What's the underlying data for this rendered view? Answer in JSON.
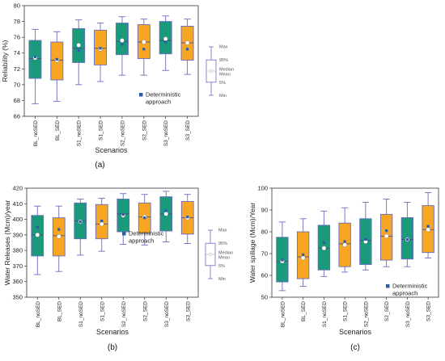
{
  "chart_data": [
    {
      "id": "a",
      "type": "box",
      "panel_label": "(a)",
      "xlabel": "Scenarios",
      "ylabel": "Reliability (%)",
      "ylim": [
        66,
        80
      ],
      "yticks": [
        66,
        68,
        70,
        72,
        74,
        76,
        78,
        80
      ],
      "categories": [
        "BL_noSED",
        "BL_SED",
        "S1_noSED",
        "S1_SED",
        "S2_noSED",
        "S2_SED",
        "S3_noSED",
        "S3_SED"
      ],
      "boxes": [
        {
          "min": 67.6,
          "q1": 70.8,
          "median": 73.3,
          "mean": 73.4,
          "q3": 75.6,
          "max": 77.0,
          "deterministic": 73.5,
          "color": "#1a9a7a"
        },
        {
          "min": 67.9,
          "q1": 70.6,
          "median": 73.1,
          "mean": 73.1,
          "q3": 75.4,
          "max": 76.7,
          "deterministic": 73.2,
          "color": "#f6a623"
        },
        {
          "min": 70.0,
          "q1": 72.8,
          "median": 74.6,
          "mean": 75.0,
          "q3": 77.1,
          "max": 78.2,
          "deterministic": 74.3,
          "color": "#1a9a7a"
        },
        {
          "min": 70.4,
          "q1": 72.5,
          "median": 74.6,
          "mean": 74.5,
          "q3": 76.9,
          "max": 77.8,
          "deterministic": 74.6,
          "color": "#f6a623"
        },
        {
          "min": 71.2,
          "q1": 73.8,
          "median": 75.5,
          "mean": 75.6,
          "q3": 77.8,
          "max": 78.6,
          "deterministic": 75.1,
          "color": "#1a9a7a"
        },
        {
          "min": 71.2,
          "q1": 73.3,
          "median": 75.4,
          "mean": 75.4,
          "q3": 77.6,
          "max": 78.3,
          "deterministic": 74.5,
          "color": "#f6a623"
        },
        {
          "min": 71.8,
          "q1": 73.9,
          "median": 75.6,
          "mean": 75.8,
          "q3": 78.0,
          "max": 78.7,
          "deterministic": 75.4,
          "color": "#1a9a7a"
        },
        {
          "min": 71.3,
          "q1": 73.1,
          "median": 75.3,
          "mean": 75.3,
          "q3": 77.4,
          "max": 78.3,
          "deterministic": 74.5,
          "color": "#f6a623"
        }
      ],
      "legend": {
        "label": "Deterministic approach",
        "lines": [
          "Deterministic",
          "approach"
        ]
      },
      "key_labels": {
        "max": "Max",
        "p95": "95%",
        "median": "Median",
        "mean": "Mean",
        "p5": "5%",
        "min": "Min"
      }
    },
    {
      "id": "b",
      "type": "box",
      "panel_label": "(b)",
      "xlabel": "Scenarios",
      "ylabel": "Water Releases (Mcm)/year",
      "ylim": [
        350,
        420
      ],
      "yticks": [
        350,
        360,
        370,
        380,
        390,
        400,
        410,
        420
      ],
      "categories": [
        "BL_noSED",
        "BL_SED",
        "S1_noSED",
        "S1_SED",
        "S2_noSED",
        "S2_SED",
        "S3_noSED",
        "S3_SED"
      ],
      "boxes": [
        {
          "min": 364.5,
          "q1": 376.5,
          "median": 390.0,
          "mean": 390.0,
          "q3": 402.5,
          "max": 408.5,
          "deterministic": 395.0,
          "color": "#1a9a7a"
        },
        {
          "min": 366.5,
          "q1": 376.5,
          "median": 389.5,
          "mean": 389.0,
          "q3": 401.0,
          "max": 408.5,
          "deterministic": 393.5,
          "color": "#f6a623"
        },
        {
          "min": 377.0,
          "q1": 387.5,
          "median": 399.0,
          "mean": 398.5,
          "q3": 410.5,
          "max": 413.0,
          "deterministic": 398.5,
          "color": "#1a9a7a"
        },
        {
          "min": 379.5,
          "q1": 387.5,
          "median": 397.0,
          "mean": 397.0,
          "q3": 409.5,
          "max": 413.5,
          "deterministic": 399.0,
          "color": "#f6a623"
        },
        {
          "min": 384.0,
          "q1": 392.0,
          "median": 403.5,
          "mean": 402.5,
          "q3": 413.0,
          "max": 416.5,
          "deterministic": 403.0,
          "color": "#1a9a7a"
        },
        {
          "min": 383.5,
          "q1": 391.0,
          "median": 401.5,
          "mean": 401.5,
          "q3": 410.5,
          "max": 416.0,
          "deterministic": 401.0,
          "color": "#f6a623"
        },
        {
          "min": 385.5,
          "q1": 392.5,
          "median": 403.5,
          "mean": 403.5,
          "q3": 414.5,
          "max": 418.0,
          "deterministic": 405.5,
          "color": "#1a9a7a"
        },
        {
          "min": 384.5,
          "q1": 390.5,
          "median": 401.0,
          "mean": 401.0,
          "q3": 411.5,
          "max": 416.0,
          "deterministic": 401.5,
          "color": "#f6a623"
        }
      ],
      "legend": {
        "label": "Deterministic approach",
        "lines": [
          "Deterministic",
          "approach"
        ]
      },
      "key_labels": {
        "max": "Max",
        "p95": "95%",
        "median": "Median",
        "mean": "Mean",
        "p5": "5%",
        "min": "Min"
      }
    },
    {
      "id": "c",
      "type": "box",
      "panel_label": "(c)",
      "xlabel": "Scenarios",
      "ylabel": "Water spillage (Mcm)/Year",
      "ylim": [
        50,
        100
      ],
      "yticks": [
        50,
        60,
        70,
        80,
        90,
        100
      ],
      "categories": [
        "BL_noSED",
        "BL_SED",
        "S1_noSED",
        "S1_SED",
        "S2_noSED",
        "S2_SED",
        "S3_noSED",
        "S3_SED"
      ],
      "boxes": [
        {
          "min": 53.0,
          "q1": 57.0,
          "median": 66.5,
          "mean": 66.5,
          "q3": 77.5,
          "max": 84.5,
          "deterministic": 67.0,
          "color": "#1a9a7a"
        },
        {
          "min": 55.0,
          "q1": 58.5,
          "median": 68.5,
          "mean": 68.0,
          "q3": 80.0,
          "max": 86.0,
          "deterministic": 69.5,
          "color": "#f6a623"
        },
        {
          "min": 59.5,
          "q1": 62.5,
          "median": 72.5,
          "mean": 72.5,
          "q3": 83.0,
          "max": 89.5,
          "deterministic": 75.0,
          "color": "#1a9a7a"
        },
        {
          "min": 61.5,
          "q1": 64.0,
          "median": 74.5,
          "mean": 74.0,
          "q3": 84.0,
          "max": 91.0,
          "deterministic": 75.5,
          "color": "#f6a623"
        },
        {
          "min": 62.5,
          "q1": 65.0,
          "median": 76.0,
          "mean": 75.5,
          "q3": 86.0,
          "max": 93.5,
          "deterministic": 76.5,
          "color": "#1a9a7a"
        },
        {
          "min": 64.0,
          "q1": 67.0,
          "median": 78.0,
          "mean": 78.0,
          "q3": 88.0,
          "max": 95.0,
          "deterministic": 80.5,
          "color": "#f6a623"
        },
        {
          "min": 64.0,
          "q1": 67.5,
          "median": 76.5,
          "mean": 76.5,
          "q3": 86.5,
          "max": 93.5,
          "deterministic": 76.5,
          "color": "#1a9a7a"
        },
        {
          "min": 68.0,
          "q1": 70.5,
          "median": 81.0,
          "mean": 81.0,
          "q3": 92.0,
          "max": 98.0,
          "deterministic": 82.5,
          "color": "#f6a623"
        }
      ],
      "legend": {
        "label": "Deterministic approach",
        "lines": [
          "Deterministic",
          "approach"
        ]
      }
    }
  ],
  "colors": {
    "teal": "#1a9a7a",
    "orange": "#f6a623",
    "whisker": "#6c6cc0",
    "deterministic": "#2a5caa"
  }
}
